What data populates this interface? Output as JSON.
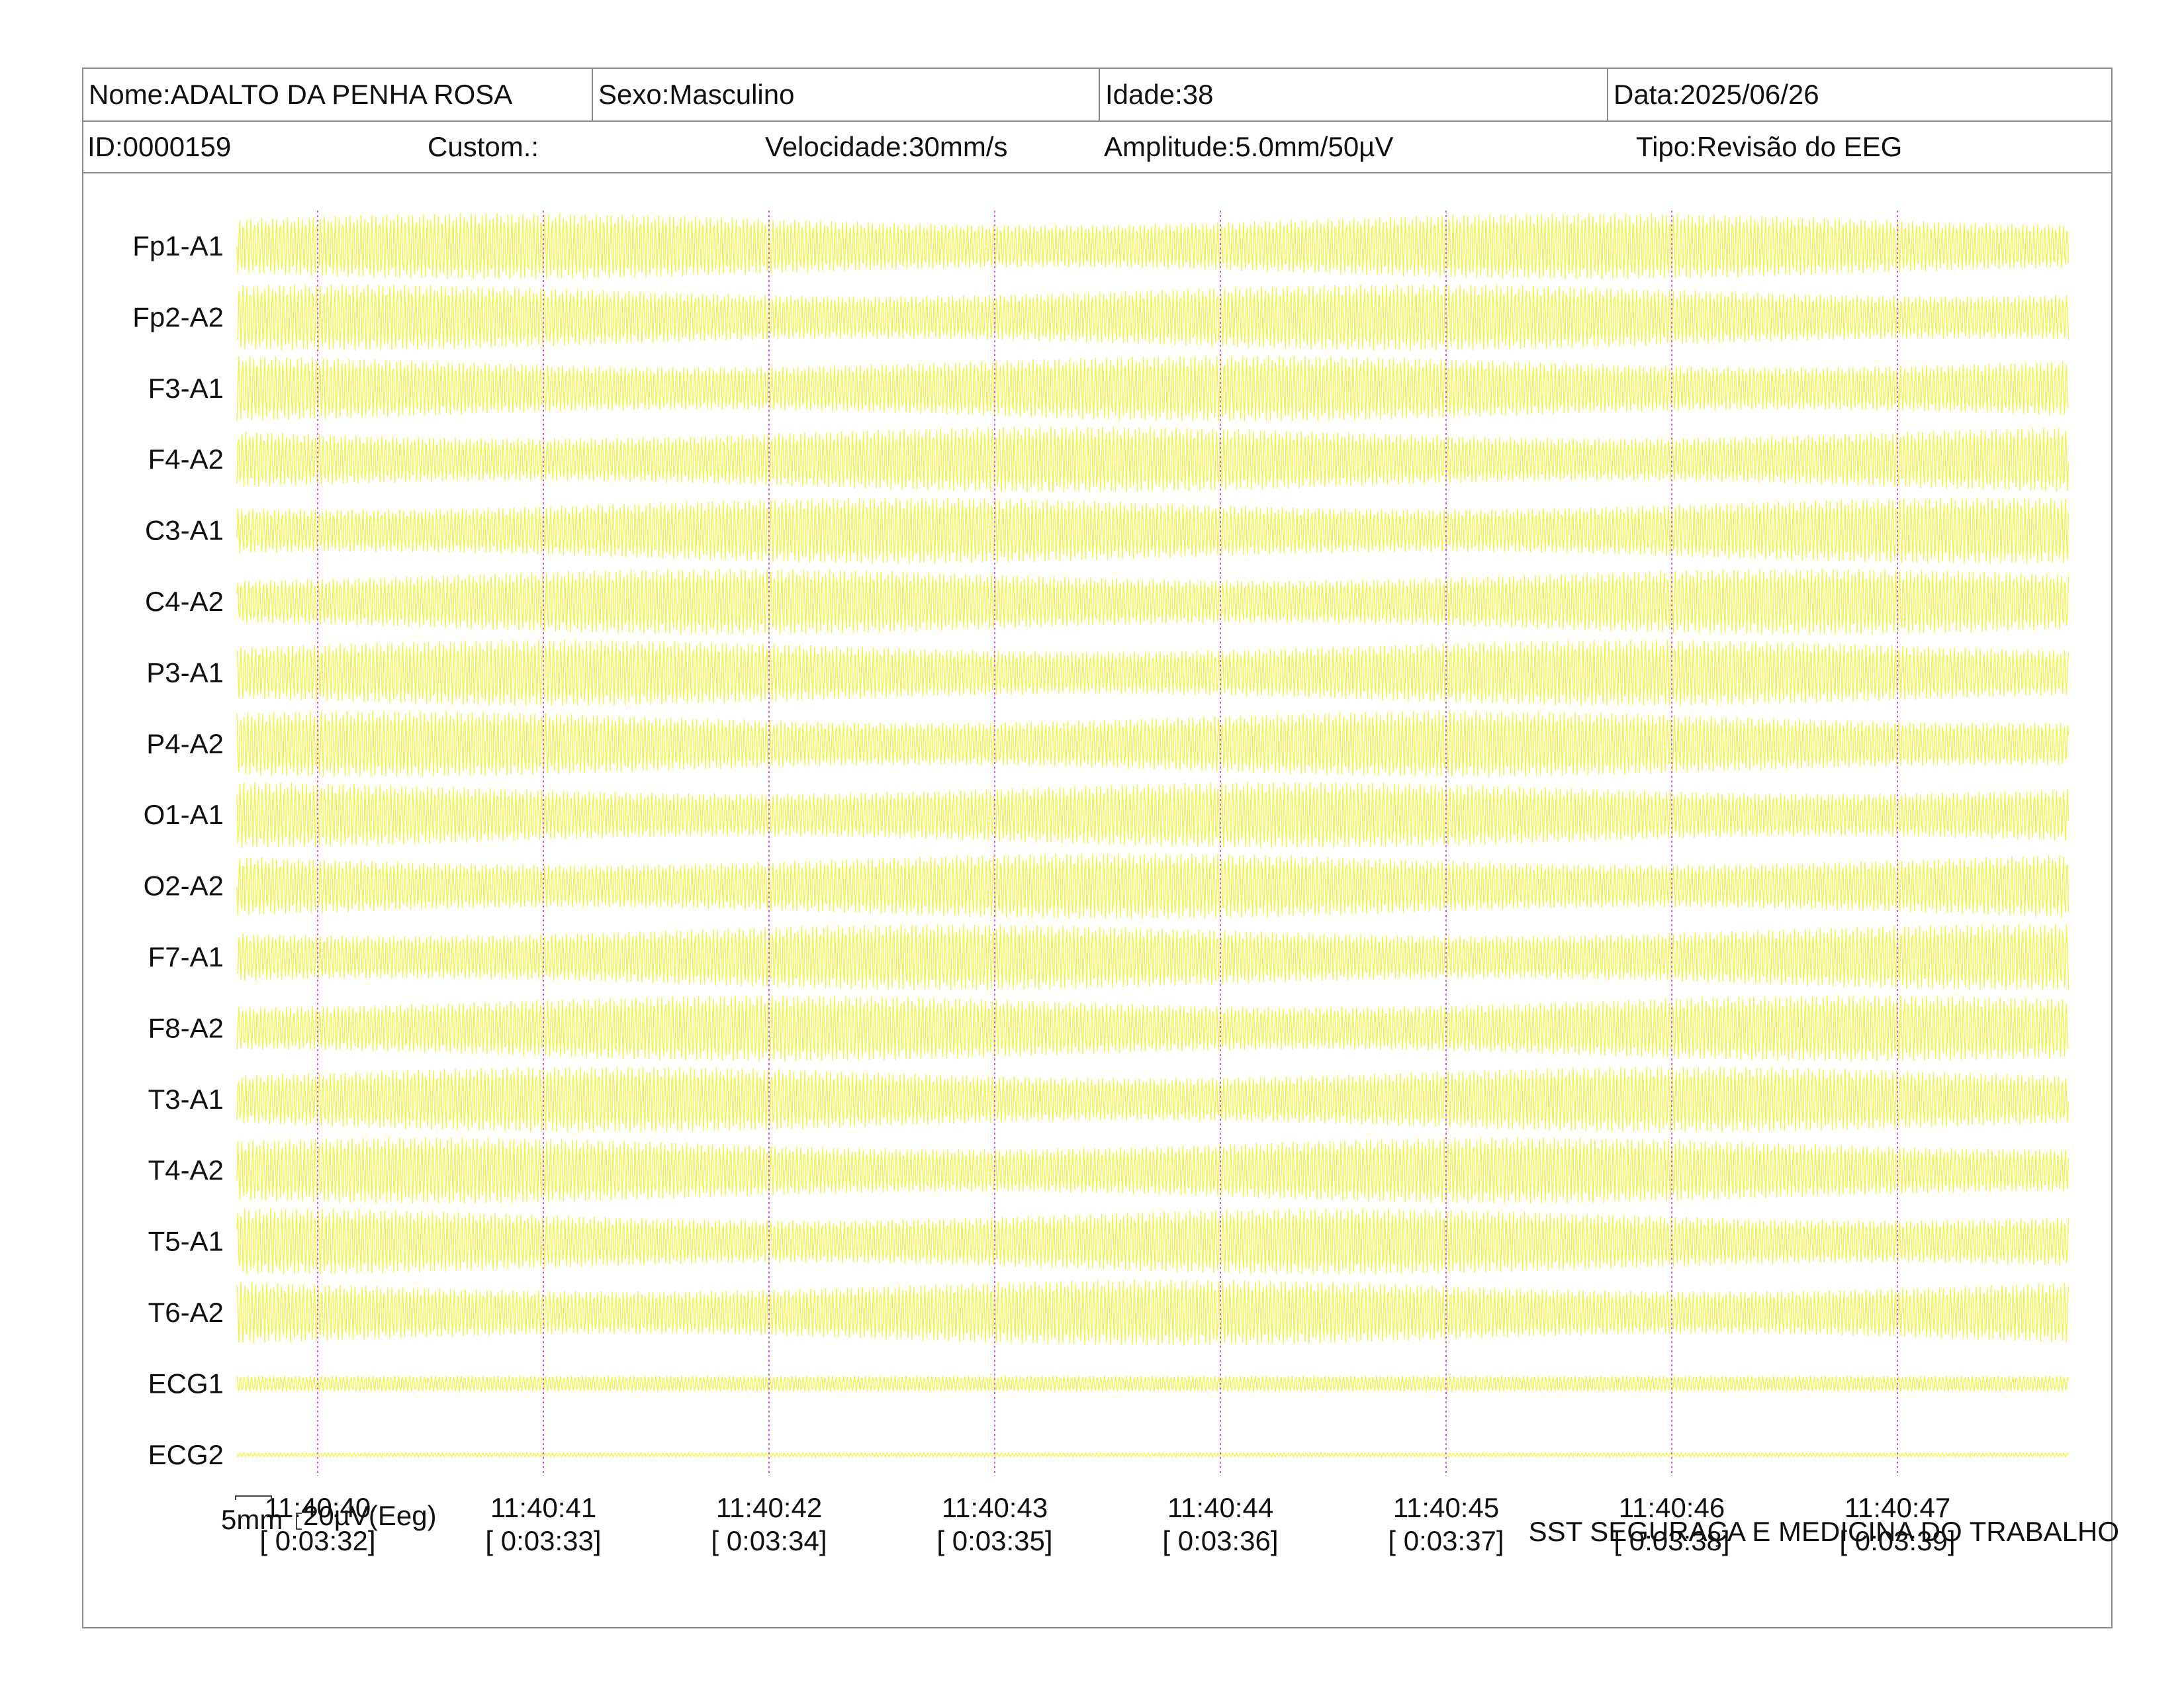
{
  "header": {
    "nome": "Nome:ADALTO DA PENHA ROSA",
    "sexo": "Sexo:Masculino",
    "idade": "Idade:38",
    "data": "Data:2025/06/26",
    "id": "ID:0000159",
    "custom": "Custom.:",
    "velocidade": "Velocidade:30mm/s",
    "amplitude": "Amplitude:5.0mm/50µV",
    "tipo": "Tipo:Revisão do EEG"
  },
  "chart_data": {
    "type": "line",
    "channels": [
      "Fp1-A1",
      "Fp2-A2",
      "F3-A1",
      "F4-A2",
      "C3-A1",
      "C4-A2",
      "P3-A1",
      "P4-A2",
      "O1-A1",
      "O2-A2",
      "F7-A1",
      "F8-A2",
      "T3-A1",
      "T4-A2",
      "T5-A1",
      "T6-A2",
      "ECG1",
      "ECG2"
    ],
    "time_markers": [
      {
        "clock": "11:40:40",
        "elapsed": "[ 0:03:32]"
      },
      {
        "clock": "11:40:41",
        "elapsed": "[ 0:03:33]"
      },
      {
        "clock": "11:40:42",
        "elapsed": "[ 0:03:34]"
      },
      {
        "clock": "11:40:43",
        "elapsed": "[ 0:03:35]"
      },
      {
        "clock": "11:40:44",
        "elapsed": "[ 0:03:36]"
      },
      {
        "clock": "11:40:45",
        "elapsed": "[ 0:03:37]"
      },
      {
        "clock": "11:40:46",
        "elapsed": "[ 0:03:38]"
      },
      {
        "clock": "11:40:47",
        "elapsed": "[ 0:03:39]"
      }
    ],
    "trace_color": "#f2f23a",
    "marker_color": "#d85bd8",
    "approx_cycles_per_second": 60,
    "grid": false
  },
  "scale": {
    "length": "5mm",
    "amplitude": "20µV(Eeg)"
  },
  "footer": {
    "company": "SST SEGURAÇA E MEDICINA DO TRABALHO"
  }
}
